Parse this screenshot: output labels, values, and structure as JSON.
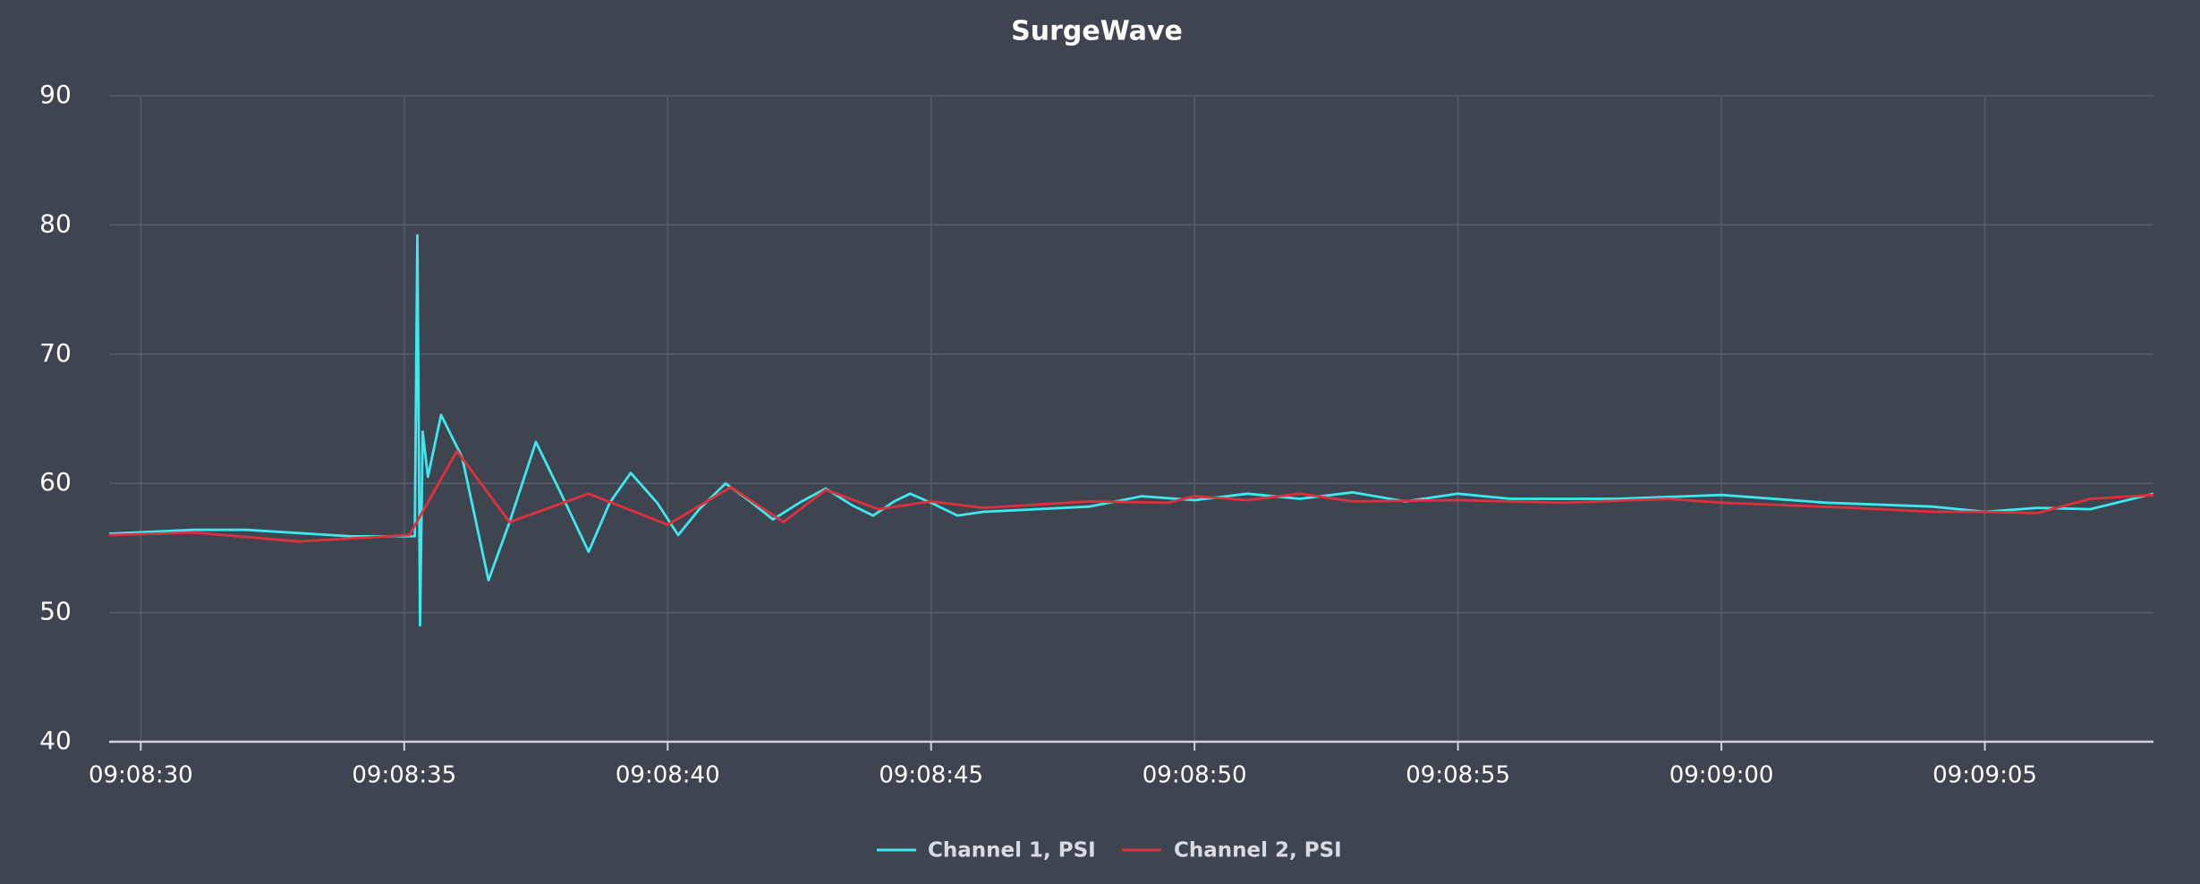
{
  "chart_data": {
    "type": "line",
    "title": "SurgeWave",
    "xlim": [
      "09:08:29.4",
      "09:09:08.2"
    ],
    "xticks": [
      "09:08:30",
      "09:08:35",
      "09:08:40",
      "09:08:45",
      "09:08:50",
      "09:08:55",
      "09:09:00",
      "09:09:05"
    ],
    "ylim": [
      40,
      90
    ],
    "yticks": [
      40,
      50,
      60,
      70,
      80,
      90
    ],
    "grid": true,
    "legend": "bottom",
    "series": [
      {
        "name": "Channel 1, PSI",
        "color": "#3de8ef",
        "x": [
          "09:08:29.4",
          "09:08:31.0",
          "09:08:32.0",
          "09:08:34.0",
          "09:08:35.2",
          "09:08:35.25",
          "09:08:35.3",
          "09:08:35.35",
          "09:08:35.45",
          "09:08:35.7",
          "09:08:36.1",
          "09:08:36.6",
          "09:08:37.0",
          "09:08:37.5",
          "09:08:38.0",
          "09:08:38.5",
          "09:08:38.9",
          "09:08:39.3",
          "09:08:39.8",
          "09:08:40.2",
          "09:08:40.6",
          "09:08:41.1",
          "09:08:41.6",
          "09:08:42.0",
          "09:08:42.5",
          "09:08:43.0",
          "09:08:43.5",
          "09:08:43.9",
          "09:08:44.3",
          "09:08:44.6",
          "09:08:45.0",
          "09:08:45.5",
          "09:08:46.0",
          "09:08:48.0",
          "09:08:49.0",
          "09:08:50.0",
          "09:08:51.0",
          "09:08:52.0",
          "09:08:53.0",
          "09:08:54.0",
          "09:08:55.0",
          "09:08:56.0",
          "09:08:58.0",
          "09:09:00.0",
          "09:09:02.0",
          "09:09:04.0",
          "09:09:05.0",
          "09:09:06.0",
          "09:09:07.0",
          "09:09:08.2"
        ],
        "values": [
          56.1,
          56.4,
          56.4,
          55.9,
          55.9,
          79.2,
          49.0,
          64.0,
          60.5,
          65.3,
          62.0,
          52.5,
          57.0,
          63.2,
          59.0,
          54.7,
          58.5,
          60.8,
          58.5,
          56.0,
          58.0,
          60.0,
          58.5,
          57.2,
          58.5,
          59.6,
          58.3,
          57.5,
          58.6,
          59.2,
          58.5,
          57.5,
          57.8,
          58.2,
          59.0,
          58.7,
          59.2,
          58.8,
          59.3,
          58.6,
          59.2,
          58.8,
          58.8,
          59.1,
          58.5,
          58.2,
          57.8,
          58.1,
          58.0,
          59.2
        ]
      },
      {
        "name": "Channel 2, PSI",
        "color": "#e0303e",
        "x": [
          "09:08:29.4",
          "09:08:31.0",
          "09:08:33.0",
          "09:08:35.1",
          "09:08:36.0",
          "09:08:37.0",
          "09:08:38.5",
          "09:08:40.0",
          "09:08:41.2",
          "09:08:42.2",
          "09:08:43.0",
          "09:08:44.0",
          "09:08:45.0",
          "09:08:46.0",
          "09:08:48.0",
          "09:08:49.5",
          "09:08:50.0",
          "09:08:51.0",
          "09:08:52.0",
          "09:08:53.0",
          "09:08:55.0",
          "09:08:57.0",
          "09:08:59.0",
          "09:09:00.0",
          "09:09:02.5",
          "09:09:04.0",
          "09:09:05.0",
          "09:09:06.0",
          "09:09:07.0",
          "09:09:08.2"
        ],
        "values": [
          56.0,
          56.2,
          55.5,
          56.0,
          62.5,
          57.0,
          59.2,
          56.8,
          59.7,
          57.0,
          59.5,
          58.0,
          58.6,
          58.1,
          58.6,
          58.5,
          59.0,
          58.7,
          59.2,
          58.6,
          58.7,
          58.5,
          58.8,
          58.5,
          58.1,
          57.8,
          57.8,
          57.7,
          58.8,
          59.1
        ]
      }
    ]
  }
}
